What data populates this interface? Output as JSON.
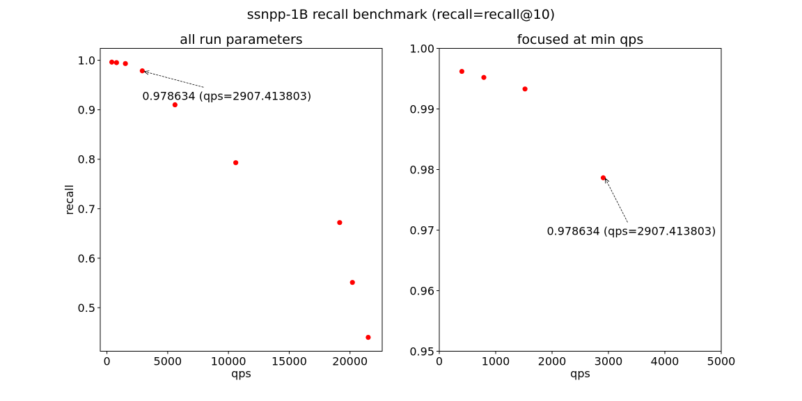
{
  "figure": {
    "suptitle": "ssnpp-1B recall benchmark (recall=recall@10)"
  },
  "chart_data": [
    {
      "type": "scatter",
      "title": "all run parameters",
      "xlabel": "qps",
      "ylabel": "recall",
      "xlim": [
        -550,
        22650
      ],
      "ylim": [
        0.412,
        1.024
      ],
      "xticks": [
        0,
        5000,
        10000,
        15000,
        20000
      ],
      "yticks": [
        0.5,
        0.6,
        0.7,
        0.8,
        0.9,
        1.0
      ],
      "ytick_format": 1,
      "marker_color": "#ff0000",
      "points": [
        {
          "x": 400,
          "y": 0.9962
        },
        {
          "x": 790,
          "y": 0.9952
        },
        {
          "x": 1520,
          "y": 0.9933
        },
        {
          "x": 2907.413803,
          "y": 0.978634
        },
        {
          "x": 5600,
          "y": 0.91
        },
        {
          "x": 10600,
          "y": 0.793
        },
        {
          "x": 19150,
          "y": 0.672
        },
        {
          "x": 20200,
          "y": 0.551
        },
        {
          "x": 21500,
          "y": 0.44
        }
      ],
      "annotation": {
        "text": "0.978634 (qps=2907.413803)",
        "point": {
          "x": 2907.413803,
          "y": 0.978634
        },
        "text_at": {
          "x": 2907.413803,
          "y": 0.9286
        }
      }
    },
    {
      "type": "scatter",
      "title": "focused at min qps",
      "xlabel": "qps",
      "ylabel": "",
      "xlim": [
        0,
        5000
      ],
      "ylim": [
        0.95,
        1.0
      ],
      "xticks": [
        0,
        1000,
        2000,
        3000,
        4000,
        5000
      ],
      "yticks": [
        0.95,
        0.96,
        0.97,
        0.98,
        0.99,
        1.0
      ],
      "ytick_format": 2,
      "marker_color": "#ff0000",
      "points": [
        {
          "x": 400,
          "y": 0.9962
        },
        {
          "x": 790,
          "y": 0.9952
        },
        {
          "x": 1520,
          "y": 0.9933
        },
        {
          "x": 2907.413803,
          "y": 0.978634
        }
      ],
      "annotation": {
        "text": "0.978634 (qps=2907.413803)",
        "point": {
          "x": 2907.413803,
          "y": 0.978634
        },
        "text_at": {
          "x": 1907.413803,
          "y": 0.9699
        }
      }
    }
  ]
}
